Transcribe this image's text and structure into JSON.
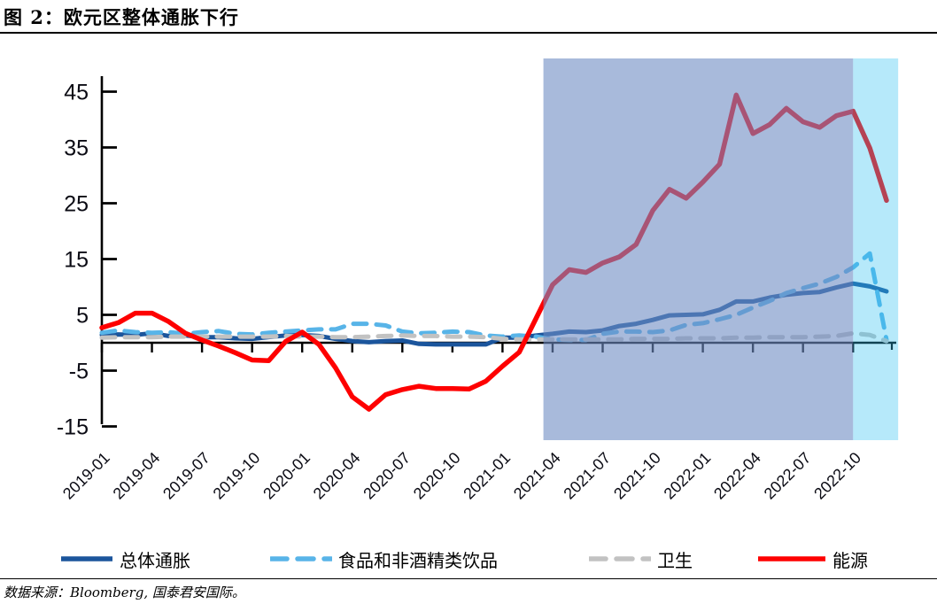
{
  "figure": {
    "title": "图 2：欧元区整体通胀下行",
    "source_note": "数据来源：Bloomberg, 国泰君安国际。"
  },
  "chart_data": {
    "type": "line",
    "title": "图 2：欧元区整体通胀下行",
    "grid": false,
    "legend_position": "bottom",
    "y_ticks": [
      45,
      35,
      25,
      15,
      5,
      -5,
      -15
    ],
    "ylim": [
      -16,
      48
    ],
    "x_tick_labels": [
      "2019-01",
      "2019-04",
      "2019-07",
      "2019-10",
      "2020-01",
      "2020-04",
      "2020-07",
      "2020-10",
      "2021-01",
      "2021-04",
      "2021-07",
      "2021-10",
      "2022-01",
      "2022-04",
      "2022-07",
      "2022-10"
    ],
    "months": [
      "2019-01",
      "2019-02",
      "2019-03",
      "2019-04",
      "2019-05",
      "2019-06",
      "2019-07",
      "2019-08",
      "2019-09",
      "2019-10",
      "2019-11",
      "2019-12",
      "2020-01",
      "2020-02",
      "2020-03",
      "2020-04",
      "2020-05",
      "2020-06",
      "2020-07",
      "2020-08",
      "2020-09",
      "2020-10",
      "2020-11",
      "2020-12",
      "2021-01",
      "2021-02",
      "2021-03",
      "2021-04",
      "2021-05",
      "2021-06",
      "2021-07",
      "2021-08",
      "2021-09",
      "2021-10",
      "2021-11",
      "2021-12",
      "2022-01",
      "2022-02",
      "2022-03",
      "2022-04",
      "2022-05",
      "2022-06",
      "2022-07",
      "2022-08",
      "2022-09",
      "2022-10",
      "2022-11",
      "2022-12"
    ],
    "series": [
      {
        "id": "overall",
        "name": "总体通胀",
        "color": "#1B559C",
        "style": "solid",
        "values": [
          1.4,
          1.5,
          1.4,
          1.7,
          1.2,
          1.3,
          1.0,
          1.0,
          0.8,
          0.7,
          1.0,
          1.3,
          1.4,
          1.2,
          0.7,
          0.3,
          0.1,
          0.3,
          0.4,
          -0.2,
          -0.3,
          -0.3,
          -0.3,
          -0.3,
          0.9,
          0.9,
          1.3,
          1.6,
          2.0,
          1.9,
          2.2,
          3.0,
          3.4,
          4.1,
          4.9,
          5.0,
          5.1,
          5.9,
          7.4,
          7.4,
          8.1,
          8.6,
          8.9,
          9.1,
          9.9,
          10.6,
          10.1,
          9.2
        ]
      },
      {
        "id": "food",
        "name": "食品和非酒精类饮品",
        "color": "#58B4E8",
        "style": "dashed",
        "values": [
          1.8,
          2.2,
          1.9,
          1.8,
          1.9,
          1.6,
          1.9,
          2.1,
          1.6,
          1.5,
          1.8,
          2.0,
          2.2,
          2.4,
          2.4,
          3.4,
          3.4,
          3.1,
          2.0,
          1.7,
          1.8,
          2.0,
          1.9,
          1.3,
          1.1,
          1.3,
          1.1,
          0.6,
          0.5,
          0.5,
          1.6,
          2.0,
          2.0,
          1.9,
          2.2,
          3.2,
          3.5,
          4.2,
          5.0,
          6.3,
          7.5,
          8.9,
          9.8,
          10.6,
          11.8,
          13.5,
          16.0,
          0.5
        ]
      },
      {
        "id": "health",
        "name": "卫生",
        "color": "#C2C2C2",
        "style": "dashed",
        "values": [
          0.9,
          1.0,
          1.0,
          1.0,
          1.1,
          1.1,
          1.1,
          1.1,
          1.1,
          1.1,
          1.1,
          1.2,
          1.1,
          1.1,
          1.0,
          1.0,
          1.1,
          1.2,
          1.3,
          1.2,
          1.2,
          1.1,
          1.1,
          1.0,
          0.7,
          0.6,
          0.6,
          0.6,
          0.6,
          0.6,
          0.6,
          0.6,
          0.7,
          0.7,
          0.7,
          0.8,
          0.8,
          0.8,
          0.9,
          0.9,
          1.0,
          1.0,
          1.0,
          1.1,
          1.2,
          1.7,
          1.4,
          0.3
        ]
      },
      {
        "id": "energy",
        "name": "能源",
        "color": "#FE0000",
        "style": "solid",
        "values": [
          2.7,
          3.6,
          5.3,
          5.3,
          3.8,
          1.7,
          0.5,
          -0.6,
          -1.8,
          -3.1,
          -3.2,
          0.2,
          1.9,
          -0.3,
          -4.5,
          -9.7,
          -11.9,
          -9.3,
          -8.4,
          -7.8,
          -8.2,
          -8.2,
          -8.3,
          -6.9,
          -4.2,
          -1.7,
          4.3,
          10.4,
          13.1,
          12.6,
          14.3,
          15.4,
          17.6,
          23.7,
          27.5,
          25.9,
          28.8,
          32.0,
          44.4,
          37.5,
          39.1,
          42.0,
          39.6,
          38.6,
          40.7,
          41.5,
          34.9,
          25.5
        ]
      }
    ],
    "highlight_regions": [
      {
        "start_month": "2021-03",
        "end_month": "2022-10",
        "start_index": 26.45,
        "end_index": 45.0,
        "color": "rgba(110,140,195,0.60)"
      },
      {
        "start_month": "2022-10",
        "end_month": "2022-12",
        "start_index": 45.0,
        "end_index": 47.7,
        "color": "rgba(45,191,240,0.35)"
      }
    ]
  }
}
